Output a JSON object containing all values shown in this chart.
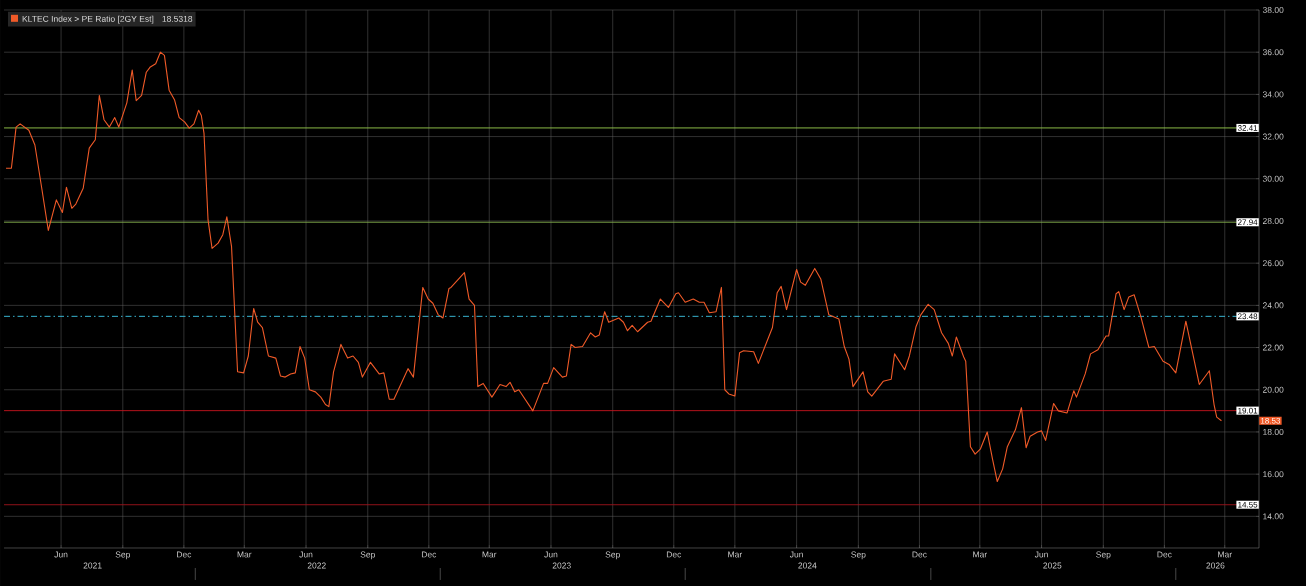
{
  "chart_data": {
    "type": "line",
    "x": [
      "2021-03-25",
      "2021-04-02",
      "2021-04-09",
      "2021-04-15",
      "2021-04-28",
      "2021-05-07",
      "2021-05-17",
      "2021-05-27",
      "2021-06-08",
      "2021-06-17",
      "2021-06-23",
      "2021-07-01",
      "2021-07-07",
      "2021-07-18",
      "2021-07-27",
      "2021-08-05",
      "2021-08-11",
      "2021-08-18",
      "2021-08-26",
      "2021-09-03",
      "2021-09-09",
      "2021-09-21",
      "2021-09-29",
      "2021-10-05",
      "2021-10-13",
      "2021-10-20",
      "2021-10-26",
      "2021-11-03",
      "2021-11-10",
      "2021-11-16",
      "2021-11-23",
      "2021-12-01",
      "2021-12-08",
      "2021-12-16",
      "2021-12-23",
      "2021-12-30",
      "2022-01-06",
      "2022-01-10",
      "2022-01-14",
      "2022-01-20",
      "2022-01-26",
      "2022-02-04",
      "2022-02-11",
      "2022-02-17",
      "2022-02-24",
      "2022-03-05",
      "2022-03-14",
      "2022-03-21",
      "2022-03-29",
      "2022-04-04",
      "2022-04-11",
      "2022-04-20",
      "2022-05-01",
      "2022-05-08",
      "2022-05-15",
      "2022-05-23",
      "2022-05-30",
      "2022-06-06",
      "2022-06-13",
      "2022-06-20",
      "2022-06-29",
      "2022-07-07",
      "2022-07-14",
      "2022-07-19",
      "2022-07-26",
      "2022-08-06",
      "2022-08-16",
      "2022-08-24",
      "2022-09-01",
      "2022-09-07",
      "2022-09-19",
      "2022-10-02",
      "2022-10-09",
      "2022-10-17",
      "2022-10-24",
      "2022-11-14",
      "2022-11-22",
      "2022-12-06",
      "2022-12-14",
      "2022-12-21",
      "2022-12-29",
      "2023-01-05",
      "2023-01-14",
      "2023-01-17",
      "2023-02-06",
      "2023-02-13",
      "2023-02-21",
      "2023-02-26",
      "2023-03-06",
      "2023-03-19",
      "2023-03-31",
      "2023-04-09",
      "2023-04-15",
      "2023-04-22",
      "2023-04-28",
      "2023-05-19",
      "2023-06-04",
      "2023-06-10",
      "2023-06-19",
      "2023-07-02",
      "2023-07-08",
      "2023-07-15",
      "2023-07-21",
      "2023-08-01",
      "2023-08-13",
      "2023-08-20",
      "2023-08-26",
      "2023-09-03",
      "2023-09-09",
      "2023-09-24",
      "2023-10-01",
      "2023-10-07",
      "2023-10-14",
      "2023-10-22",
      "2023-11-06",
      "2023-11-11",
      "2023-11-25",
      "2023-12-07",
      "2023-12-18",
      "2023-12-22",
      "2024-01-01",
      "2024-01-13",
      "2024-01-22",
      "2024-01-29",
      "2024-02-06",
      "2024-02-16",
      "2024-02-24",
      "2024-02-29",
      "2024-03-06",
      "2024-03-15",
      "2024-03-22",
      "2024-03-28",
      "2024-04-12",
      "2024-04-19",
      "2024-05-10",
      "2024-05-17",
      "2024-05-23",
      "2024-05-31",
      "2024-06-15",
      "2024-06-21",
      "2024-06-28",
      "2024-07-12",
      "2024-07-21",
      "2024-08-02",
      "2024-08-17",
      "2024-08-25",
      "2024-09-01",
      "2024-09-07",
      "2024-09-22",
      "2024-09-29",
      "2024-10-05",
      "2024-10-22",
      "2024-11-03",
      "2024-11-08",
      "2024-11-23",
      "2024-11-30",
      "2024-12-10",
      "2024-12-17",
      "2024-12-28",
      "2025-01-06",
      "2025-01-17",
      "2025-01-27",
      "2025-02-02",
      "2025-02-08",
      "2025-02-19",
      "2025-02-22",
      "2025-03-01",
      "2025-03-08",
      "2025-03-16",
      "2025-03-26",
      "2025-04-03",
      "2025-04-10",
      "2025-04-18",
      "2025-04-25",
      "2025-05-07",
      "2025-05-16",
      "2025-05-23",
      "2025-05-29",
      "2025-06-09",
      "2025-06-15",
      "2025-06-21",
      "2025-07-03",
      "2025-07-10",
      "2025-07-23",
      "2025-08-02",
      "2025-08-06",
      "2025-08-19",
      "2025-08-27",
      "2025-09-07",
      "2025-09-19",
      "2025-09-23",
      "2025-10-04",
      "2025-10-08",
      "2025-10-16",
      "2025-10-23",
      "2025-10-31",
      "2025-11-10",
      "2025-11-22",
      "2025-11-30",
      "2025-12-13",
      "2025-12-22",
      "2026-01-01",
      "2026-01-16",
      "2026-02-05",
      "2026-02-20",
      "2026-02-27",
      "2026-03-03",
      "2026-03-10"
    ],
    "series": [
      {
        "name": "KLTEC Index > PE Ratio [2GY Est]",
        "color": "#f05a28",
        "values": [
          30.5,
          30.5,
          32.45,
          32.6,
          32.3,
          31.6,
          29.6,
          27.55,
          29.0,
          28.4,
          29.6,
          28.6,
          28.8,
          29.55,
          31.45,
          31.85,
          33.95,
          32.8,
          32.45,
          32.9,
          32.45,
          33.6,
          35.15,
          33.7,
          33.95,
          35.05,
          35.3,
          35.45,
          36.0,
          35.85,
          34.2,
          33.75,
          32.9,
          32.7,
          32.4,
          32.6,
          33.25,
          33.0,
          32.15,
          28.05,
          26.7,
          26.95,
          27.35,
          28.2,
          26.8,
          20.85,
          20.8,
          21.6,
          23.85,
          23.2,
          22.95,
          21.6,
          21.5,
          20.65,
          20.6,
          20.75,
          20.8,
          22.05,
          21.5,
          20.0,
          19.9,
          19.65,
          19.3,
          19.2,
          20.85,
          22.15,
          21.5,
          21.6,
          21.3,
          20.6,
          21.3,
          20.75,
          20.8,
          19.55,
          19.55,
          21.0,
          20.6,
          24.85,
          24.3,
          24.1,
          23.55,
          23.4,
          24.8,
          24.85,
          25.55,
          24.3,
          24.0,
          20.15,
          20.3,
          19.65,
          20.25,
          20.15,
          20.35,
          19.9,
          20.0,
          19.0,
          20.3,
          20.3,
          21.05,
          20.6,
          20.65,
          22.15,
          22.0,
          22.05,
          22.7,
          22.5,
          22.6,
          23.7,
          23.2,
          23.4,
          23.2,
          22.8,
          23.05,
          22.75,
          23.2,
          23.25,
          24.3,
          23.9,
          24.55,
          24.6,
          24.15,
          24.3,
          24.15,
          24.15,
          23.65,
          23.7,
          24.85,
          20.0,
          19.8,
          19.7,
          21.75,
          21.85,
          21.8,
          21.25,
          22.95,
          24.6,
          24.9,
          23.8,
          25.7,
          25.1,
          24.95,
          25.75,
          25.25,
          23.55,
          23.35,
          22.05,
          21.45,
          20.15,
          20.85,
          19.9,
          19.7,
          20.4,
          20.5,
          21.7,
          20.95,
          21.6,
          23.0,
          23.55,
          24.05,
          23.8,
          22.7,
          22.2,
          21.6,
          22.5,
          21.55,
          21.35,
          17.3,
          16.95,
          17.2,
          18.0,
          16.7,
          15.65,
          16.25,
          17.3,
          18.1,
          19.15,
          17.25,
          17.8,
          18.0,
          18.05,
          17.6,
          19.35,
          19.0,
          18.9,
          19.95,
          19.65,
          20.75,
          21.7,
          21.9,
          22.55,
          22.55,
          24.55,
          24.65,
          23.8,
          24.4,
          24.5,
          23.45,
          22.0,
          22.05,
          21.35,
          21.2,
          20.8,
          23.25,
          20.25,
          20.9,
          19.3,
          18.7,
          18.53
        ]
      }
    ],
    "xlim": [
      "2021-03-22",
      "2026-05-05"
    ],
    "ylim": [
      12.5,
      38
    ],
    "xticks": [
      {
        "value": "2021-06-15",
        "label": "Jun"
      },
      {
        "value": "2021-09-15",
        "label": "Sep"
      },
      {
        "value": "2021-12-15",
        "label": "Dec"
      },
      {
        "value": "2022-03-15",
        "label": "Mar"
      },
      {
        "value": "2022-06-15",
        "label": "Jun"
      },
      {
        "value": "2022-09-15",
        "label": "Sep"
      },
      {
        "value": "2022-12-15",
        "label": "Dec"
      },
      {
        "value": "2023-03-15",
        "label": "Mar"
      },
      {
        "value": "2023-06-15",
        "label": "Jun"
      },
      {
        "value": "2023-09-15",
        "label": "Sep"
      },
      {
        "value": "2023-12-15",
        "label": "Dec"
      },
      {
        "value": "2024-03-15",
        "label": "Mar"
      },
      {
        "value": "2024-06-15",
        "label": "Jun"
      },
      {
        "value": "2024-09-15",
        "label": "Sep"
      },
      {
        "value": "2024-12-15",
        "label": "Dec"
      },
      {
        "value": "2025-03-15",
        "label": "Mar"
      },
      {
        "value": "2025-06-15",
        "label": "Jun"
      },
      {
        "value": "2025-09-15",
        "label": "Sep"
      },
      {
        "value": "2025-12-15",
        "label": "Dec"
      },
      {
        "value": "2026-03-15",
        "label": "Mar"
      }
    ],
    "x2lim": [
      "2021-03-22",
      "2026-05-05"
    ],
    "x2ticks": [
      {
        "value": "2021-08",
        "label": "2021"
      },
      {
        "value": "2022-07",
        "label": "2022"
      },
      {
        "value": "2023-07",
        "label": "2023"
      },
      {
        "value": "2024-07",
        "label": "2024"
      },
      {
        "value": "2025-07",
        "label": "2025"
      },
      {
        "value": "2026-03",
        "label": "2026"
      }
    ],
    "yticks": [
      {
        "value": 14,
        "label": "14.00"
      },
      {
        "value": 16,
        "label": "16.00"
      },
      {
        "value": 18,
        "label": "18.00"
      },
      {
        "value": 20,
        "label": "20.00"
      },
      {
        "value": 22,
        "label": "22.00"
      },
      {
        "value": 24,
        "label": "24.00"
      },
      {
        "value": 26,
        "label": "26.00"
      },
      {
        "value": 28,
        "label": "28.00"
      },
      {
        "value": 30,
        "label": "30.00"
      },
      {
        "value": 32,
        "label": "32.00"
      },
      {
        "value": 34,
        "label": "34.00"
      },
      {
        "value": 36,
        "label": "36.00"
      },
      {
        "value": 38,
        "label": "38.00"
      }
    ],
    "ref_lines": [
      {
        "axis": "y",
        "value": 32.41,
        "label": "32.41",
        "color": "#9acd4e"
      },
      {
        "axis": "y",
        "value": 27.94,
        "label": "27.94",
        "color": "#7fa94a"
      },
      {
        "axis": "y",
        "value": 23.48,
        "label": "23.48",
        "color": "#3ec8e6",
        "line_style": "dashed"
      },
      {
        "axis": "y",
        "value": 19.01,
        "label": "19.01",
        "color": "#c8141e"
      },
      {
        "axis": "y",
        "value": 14.55,
        "label": "14.55",
        "color": "#a0141c"
      }
    ],
    "annotations": [
      "18.5318",
      "18.53"
    ],
    "grid": true,
    "legend": "top left",
    "marker": "none"
  }
}
